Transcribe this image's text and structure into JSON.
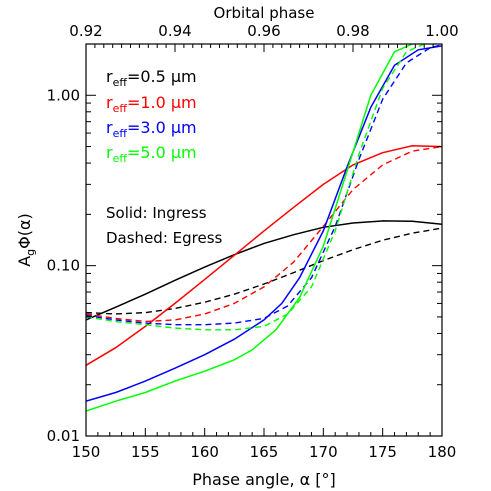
{
  "chart_data": {
    "type": "line",
    "xlabel": "Phase angle, α [°]",
    "ylabel": "AgΦ(α)",
    "ylabel_parts": {
      "a": "A",
      "sub": "g",
      "rest": "Φ(α)"
    },
    "top_xlabel": "Orbital phase",
    "xlim": [
      150,
      180
    ],
    "ylim": [
      0.01,
      2.0
    ],
    "yscale": "log",
    "x_ticks": [
      150,
      155,
      160,
      165,
      170,
      175,
      180
    ],
    "x_tick_labels": [
      "150",
      "155",
      "160",
      "165",
      "170",
      "175",
      "180"
    ],
    "y_ticks": [
      0.01,
      0.1,
      1.0
    ],
    "y_tick_labels": [
      "0.01",
      "0.10",
      "1.00"
    ],
    "top_ticks": [
      0.92,
      0.94,
      0.96,
      0.98,
      1.0
    ],
    "top_tick_labels": [
      "0.92",
      "0.94",
      "0.96",
      "0.98",
      "1.00"
    ],
    "grid": false,
    "legend": {
      "placement": "top-left",
      "entries": [
        {
          "text": "reff=0.5 μm",
          "main": "r",
          "sub": "eff",
          "rest": "=0.5 μm",
          "color": "#000000"
        },
        {
          "text": "reff=1.0 μm",
          "main": "r",
          "sub": "eff",
          "rest": "=1.0 μm",
          "color": "#ff0000"
        },
        {
          "text": "reff=3.0 μm",
          "main": "r",
          "sub": "eff",
          "rest": "=3.0 μm",
          "color": "#0000ff"
        },
        {
          "text": "reff=5.0 μm",
          "main": "r",
          "sub": "eff",
          "rest": "=5.0 μm",
          "color": "#00ff00"
        }
      ]
    },
    "notes": [
      "Solid: Ingress",
      "Dashed: Egress"
    ],
    "series": [
      {
        "color": "#000000",
        "dash": false,
        "x": [
          150,
          152.5,
          155,
          157.5,
          160,
          162.5,
          165,
          167.5,
          170,
          172.5,
          175,
          177.5,
          180
        ],
        "y": [
          0.048,
          0.057,
          0.068,
          0.082,
          0.098,
          0.116,
          0.135,
          0.152,
          0.168,
          0.178,
          0.183,
          0.182,
          0.175
        ]
      },
      {
        "color": "#000000",
        "dash": true,
        "x": [
          150,
          152.5,
          155,
          157.5,
          160,
          162.5,
          165,
          167.5,
          170,
          172.5,
          175,
          177.5,
          180
        ],
        "y": [
          0.053,
          0.052,
          0.053,
          0.056,
          0.061,
          0.068,
          0.078,
          0.091,
          0.107,
          0.124,
          0.141,
          0.155,
          0.166
        ]
      },
      {
        "color": "#ff0000",
        "dash": false,
        "x": [
          150,
          152.5,
          155,
          157.5,
          160,
          162.5,
          165,
          167.5,
          170,
          172.5,
          175,
          177.5,
          180
        ],
        "y": [
          0.026,
          0.033,
          0.044,
          0.06,
          0.083,
          0.115,
          0.16,
          0.22,
          0.3,
          0.39,
          0.46,
          0.505,
          0.5
        ]
      },
      {
        "color": "#ff0000",
        "dash": true,
        "x": [
          150,
          152.5,
          155,
          157.5,
          160,
          162.5,
          165,
          167.5,
          170,
          172.5,
          175,
          177.5,
          180
        ],
        "y": [
          0.052,
          0.049,
          0.047,
          0.048,
          0.052,
          0.06,
          0.075,
          0.105,
          0.17,
          0.28,
          0.39,
          0.47,
          0.5
        ]
      },
      {
        "color": "#0000ff",
        "dash": false,
        "x": [
          150,
          152.5,
          155,
          157.5,
          160,
          162.5,
          165,
          166.5,
          168,
          170,
          172,
          174,
          176,
          178,
          180
        ],
        "y": [
          0.016,
          0.018,
          0.021,
          0.025,
          0.03,
          0.037,
          0.048,
          0.06,
          0.085,
          0.16,
          0.38,
          0.85,
          1.5,
          1.85,
          1.95
        ]
      },
      {
        "color": "#0000ff",
        "dash": true,
        "x": [
          150,
          152.5,
          155,
          157.5,
          160,
          162.5,
          165,
          167,
          169,
          171,
          173,
          175,
          177,
          179,
          180
        ],
        "y": [
          0.051,
          0.048,
          0.046,
          0.045,
          0.045,
          0.046,
          0.049,
          0.058,
          0.085,
          0.17,
          0.42,
          0.95,
          1.55,
          1.9,
          1.98
        ]
      },
      {
        "color": "#00ff00",
        "dash": false,
        "x": [
          150,
          152.5,
          155,
          157.5,
          160,
          162.5,
          164,
          166,
          168,
          170,
          172,
          174,
          176,
          177.5
        ],
        "y": [
          0.014,
          0.016,
          0.018,
          0.021,
          0.024,
          0.028,
          0.032,
          0.042,
          0.065,
          0.13,
          0.36,
          1.0,
          1.8,
          2.0
        ]
      },
      {
        "color": "#00ff00",
        "dash": true,
        "x": [
          150,
          152.5,
          155,
          157.5,
          160,
          162.5,
          165,
          167,
          169,
          171,
          173,
          175,
          177,
          178.5
        ],
        "y": [
          0.05,
          0.047,
          0.045,
          0.043,
          0.042,
          0.042,
          0.044,
          0.052,
          0.075,
          0.16,
          0.45,
          1.1,
          1.8,
          2.0
        ]
      }
    ]
  }
}
